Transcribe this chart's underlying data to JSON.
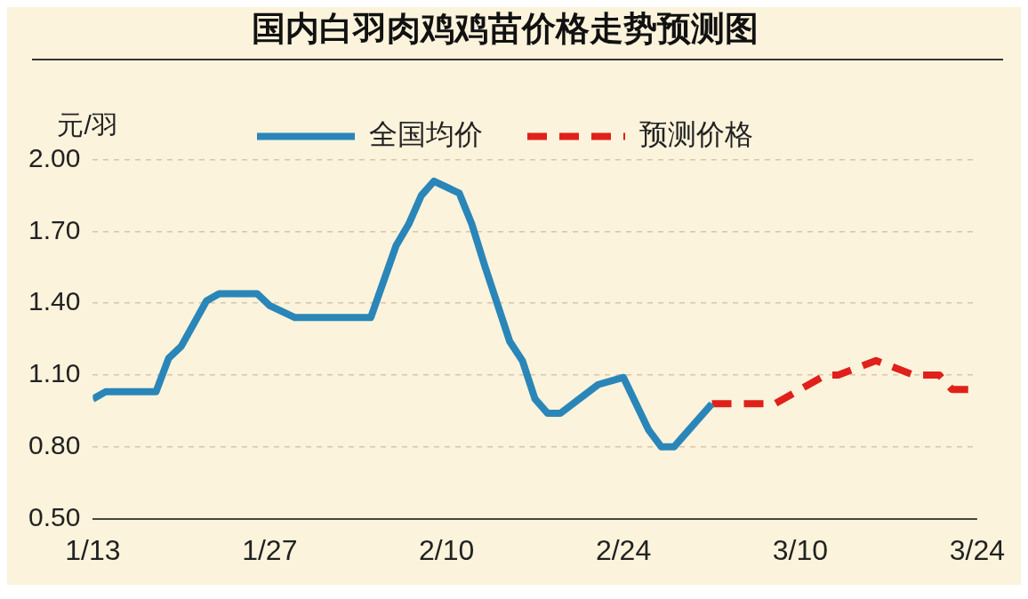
{
  "chart_data": {
    "type": "line",
    "title": "国内白羽肉鸡鸡苗价格走势预测图",
    "ylabel": "元/羽",
    "legend": "top",
    "grid": "y",
    "marker": "none",
    "xlim": [
      "--01-13",
      "--03-24"
    ],
    "xticks": [
      {
        "value": "--01-13",
        "label": "1/13"
      },
      {
        "value": "--01-27",
        "label": "1/27"
      },
      {
        "value": "--02-10",
        "label": "2/10"
      },
      {
        "value": "--02-24",
        "label": "2/24"
      },
      {
        "value": "--03-10",
        "label": "3/10"
      },
      {
        "value": "--03-24",
        "label": "3/24"
      }
    ],
    "ylim": [
      0.5,
      2.0
    ],
    "yticks": [
      {
        "value": 0.5,
        "label": "0.50"
      },
      {
        "value": 0.8,
        "label": "0.80"
      },
      {
        "value": 1.1,
        "label": "1.10"
      },
      {
        "value": 1.4,
        "label": "1.40"
      },
      {
        "value": 1.7,
        "label": "1.70"
      },
      {
        "value": 2.0,
        "label": "2.00"
      }
    ],
    "series": [
      {
        "name": "全国均价",
        "color": "#2a86b8",
        "line_style": "solid",
        "x": [
          "--01-13",
          "--01-14",
          "--01-18",
          "--01-19",
          "--01-20",
          "--01-22",
          "--01-23",
          "--01-26",
          "--01-27",
          "--01-29",
          "--02-04",
          "--02-06",
          "--02-07",
          "--02-08",
          "--02-09",
          "--02-11",
          "--02-12",
          "--02-13",
          "--02-15",
          "--02-16",
          "--02-17",
          "--02-18",
          "--02-19",
          "--02-22",
          "--02-24",
          "--02-26",
          "--02-27",
          "--02-28",
          "--03-03"
        ],
        "values": [
          1.0,
          1.03,
          1.03,
          1.17,
          1.22,
          1.41,
          1.44,
          1.44,
          1.39,
          1.34,
          1.34,
          1.64,
          1.73,
          1.85,
          1.91,
          1.86,
          1.73,
          1.56,
          1.24,
          1.16,
          1.0,
          0.94,
          0.94,
          1.06,
          1.09,
          0.87,
          0.8,
          0.8,
          0.98
        ]
      },
      {
        "name": "预测价格",
        "color": "#e0201a",
        "line_style": "dashed",
        "x": [
          "--03-03",
          "--03-08",
          "--03-12",
          "--03-13",
          "--03-16",
          "--03-19",
          "--03-21",
          "--03-22",
          "--03-24"
        ],
        "values": [
          0.98,
          0.98,
          1.1,
          1.1,
          1.16,
          1.1,
          1.1,
          1.04,
          1.04
        ]
      }
    ]
  }
}
